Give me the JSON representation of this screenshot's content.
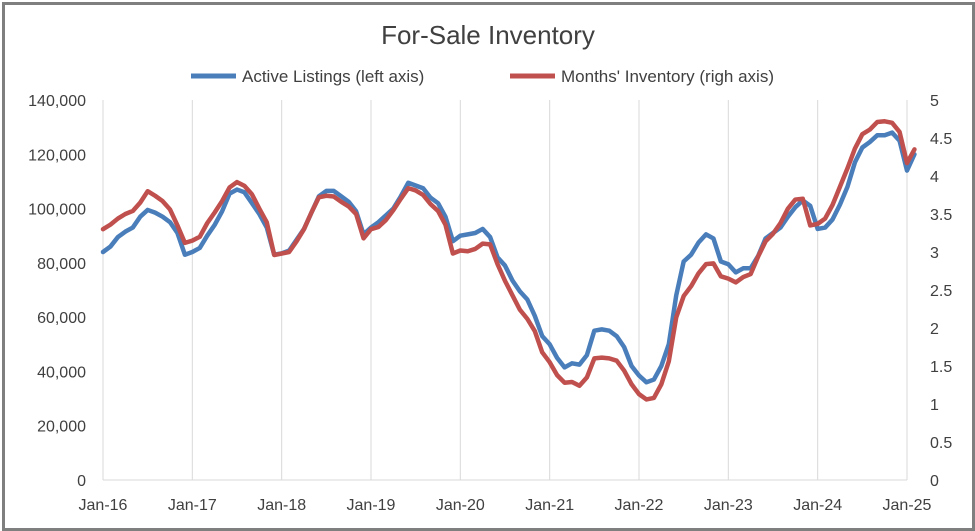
{
  "chart_data": {
    "type": "line",
    "title": "For-Sale Inventory",
    "legend_position": "top-center",
    "grid": "vertical",
    "x_tick_labels": [
      "Jan-16",
      "Jan-17",
      "Jan-18",
      "Jan-19",
      "Jan-20",
      "Jan-21",
      "Jan-22",
      "Jan-23",
      "Jan-24",
      "Jan-25"
    ],
    "y_left": {
      "range": [
        0,
        140000
      ],
      "tick_labels": [
        "0",
        "20,000",
        "40,000",
        "60,000",
        "80,000",
        "100,000",
        "120,000",
        "140,000"
      ]
    },
    "y_right": {
      "range": [
        0,
        5
      ],
      "tick_labels": [
        "0",
        "0.5",
        "1",
        "1.5",
        "2",
        "2.5",
        "3",
        "3.5",
        "4",
        "4.5",
        "5"
      ]
    },
    "series": [
      {
        "name": "Active Listings (left axis)",
        "axis": "left",
        "color": "#4a7ebb",
        "values": [
          84000,
          86000,
          89500,
          91500,
          93000,
          97000,
          99500,
          98500,
          97000,
          95000,
          91000,
          83000,
          84000,
          85500,
          90000,
          94000,
          99000,
          105500,
          107000,
          106000,
          102000,
          98000,
          93000,
          83000,
          83500,
          84500,
          88500,
          92500,
          98500,
          104500,
          106500,
          106500,
          104500,
          102500,
          99000,
          90500,
          93000,
          95000,
          97500,
          100000,
          104500,
          109500,
          108500,
          107500,
          104000,
          102000,
          97000,
          88000,
          90000,
          90500,
          91000,
          92500,
          89500,
          82000,
          79000,
          73500,
          69500,
          66500,
          60500,
          53000,
          50000,
          45000,
          41500,
          43000,
          42500,
          46000,
          55000,
          55500,
          55000,
          53000,
          49000,
          42000,
          38500,
          36000,
          37000,
          42000,
          50000,
          68000,
          80500,
          83000,
          87500,
          90500,
          89000,
          80500,
          79500,
          76500,
          78000,
          78000,
          82500,
          89000,
          91000,
          93000,
          97000,
          100500,
          103000,
          101000,
          92500,
          93000,
          96000,
          101500,
          108000,
          117000,
          122500,
          124500,
          127000,
          127000,
          128000,
          125000,
          114000,
          120000
        ]
      },
      {
        "name": "Months' Inventory (righ axis)",
        "axis": "right",
        "color": "#c0504d",
        "values": [
          3.3,
          3.36,
          3.44,
          3.5,
          3.54,
          3.65,
          3.8,
          3.74,
          3.67,
          3.56,
          3.35,
          3.12,
          3.15,
          3.2,
          3.38,
          3.52,
          3.67,
          3.85,
          3.92,
          3.87,
          3.76,
          3.57,
          3.39,
          2.96,
          2.98,
          3.0,
          3.14,
          3.3,
          3.52,
          3.72,
          3.74,
          3.73,
          3.66,
          3.6,
          3.5,
          3.18,
          3.3,
          3.33,
          3.42,
          3.55,
          3.7,
          3.84,
          3.81,
          3.75,
          3.63,
          3.54,
          3.36,
          2.98,
          3.02,
          3.01,
          3.04,
          3.11,
          3.1,
          2.84,
          2.62,
          2.43,
          2.24,
          2.12,
          1.96,
          1.68,
          1.55,
          1.38,
          1.28,
          1.29,
          1.24,
          1.35,
          1.6,
          1.61,
          1.6,
          1.57,
          1.44,
          1.26,
          1.13,
          1.06,
          1.08,
          1.26,
          1.56,
          2.14,
          2.42,
          2.55,
          2.72,
          2.84,
          2.85,
          2.68,
          2.65,
          2.6,
          2.67,
          2.71,
          2.94,
          3.14,
          3.24,
          3.38,
          3.57,
          3.69,
          3.7,
          3.35,
          3.37,
          3.44,
          3.62,
          3.86,
          4.1,
          4.36,
          4.55,
          4.61,
          4.71,
          4.72,
          4.7,
          4.58,
          4.17,
          4.35
        ]
      }
    ]
  }
}
